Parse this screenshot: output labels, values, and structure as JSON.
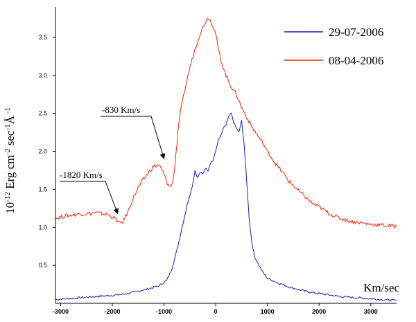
{
  "chart_data": {
    "type": "line",
    "title": "",
    "xlabel": "Km/sec",
    "ylabel": "10-12 Erg cm-2 sec-1Å -1",
    "ylabel_parts": {
      "base": "10",
      "exp1": "-12",
      "mid1": " Erg cm",
      "exp2": "-2",
      "mid2": " sec",
      "exp3": "-1",
      "mid3": "Å",
      "exp4": " -1"
    },
    "xlim": [
      -3100,
      3500
    ],
    "ylim": [
      0,
      3.9
    ],
    "x_ticks": [
      "-3000",
      "-2000",
      "-1000",
      "0",
      "1000",
      "2000",
      "3000"
    ],
    "y_ticks": [
      "0.5",
      "1.0",
      "1.5",
      "2.0",
      "2.5",
      "3.0",
      "3.5"
    ],
    "legend_position": "top-right",
    "series": [
      {
        "name": "29-07-2006",
        "color": "#1a1ab0",
        "x": [
          -3100,
          -2900,
          -2700,
          -2500,
          -2300,
          -2100,
          -1900,
          -1700,
          -1500,
          -1300,
          -1100,
          -950,
          -850,
          -750,
          -650,
          -550,
          -450,
          -400,
          -350,
          -300,
          -250,
          -200,
          -150,
          -100,
          -50,
          0,
          50,
          100,
          150,
          200,
          250,
          300,
          350,
          400,
          450,
          500,
          550,
          600,
          650,
          700,
          750,
          800,
          900,
          1000,
          1200,
          1400,
          1600,
          1800,
          2000,
          2200,
          2400,
          2600,
          2800,
          3000,
          3200,
          3400,
          3500
        ],
        "y": [
          0.05,
          0.06,
          0.07,
          0.08,
          0.09,
          0.1,
          0.11,
          0.13,
          0.16,
          0.19,
          0.23,
          0.3,
          0.45,
          0.7,
          1.0,
          1.3,
          1.55,
          1.75,
          1.65,
          1.72,
          1.7,
          1.78,
          1.75,
          1.85,
          1.88,
          2.0,
          2.15,
          2.2,
          2.3,
          2.35,
          2.45,
          2.5,
          2.38,
          2.3,
          2.25,
          2.4,
          2.1,
          1.6,
          1.1,
          0.8,
          0.62,
          0.55,
          0.42,
          0.33,
          0.27,
          0.22,
          0.18,
          0.15,
          0.13,
          0.11,
          0.09,
          0.08,
          0.07,
          0.06,
          0.05,
          0.04,
          0.04
        ]
      },
      {
        "name": "08-04-2006",
        "color": "#ee2200",
        "x": [
          -3100,
          -2900,
          -2700,
          -2500,
          -2300,
          -2100,
          -1950,
          -1850,
          -1800,
          -1700,
          -1600,
          -1500,
          -1400,
          -1300,
          -1200,
          -1100,
          -1050,
          -1000,
          -950,
          -900,
          -850,
          -800,
          -750,
          -700,
          -600,
          -500,
          -400,
          -300,
          -200,
          -150,
          -100,
          -50,
          0,
          50,
          100,
          200,
          300,
          400,
          500,
          600,
          700,
          800,
          900,
          1000,
          1100,
          1200,
          1300,
          1400,
          1500,
          1600,
          1700,
          1800,
          1900,
          2000,
          2200,
          2400,
          2600,
          2800,
          3000,
          3200,
          3400,
          3500
        ],
        "y": [
          1.12,
          1.15,
          1.17,
          1.18,
          1.19,
          1.17,
          1.12,
          1.05,
          1.07,
          1.2,
          1.38,
          1.52,
          1.63,
          1.72,
          1.8,
          1.82,
          1.76,
          1.7,
          1.6,
          1.54,
          1.55,
          1.75,
          2.1,
          2.45,
          2.8,
          3.1,
          3.35,
          3.55,
          3.7,
          3.76,
          3.72,
          3.65,
          3.55,
          3.35,
          3.2,
          3.0,
          2.85,
          2.75,
          2.58,
          2.45,
          2.32,
          2.22,
          2.12,
          2.0,
          1.9,
          1.8,
          1.72,
          1.62,
          1.55,
          1.48,
          1.42,
          1.36,
          1.3,
          1.27,
          1.18,
          1.12,
          1.08,
          1.06,
          1.04,
          1.03,
          1.02,
          1.01
        ]
      }
    ],
    "annotations": [
      {
        "text": "-830 Km/s",
        "target_x": -1000,
        "target_y": 1.85
      },
      {
        "text": "-1820 Km/s",
        "target_x": -1950,
        "target_y": 1.2
      }
    ]
  }
}
